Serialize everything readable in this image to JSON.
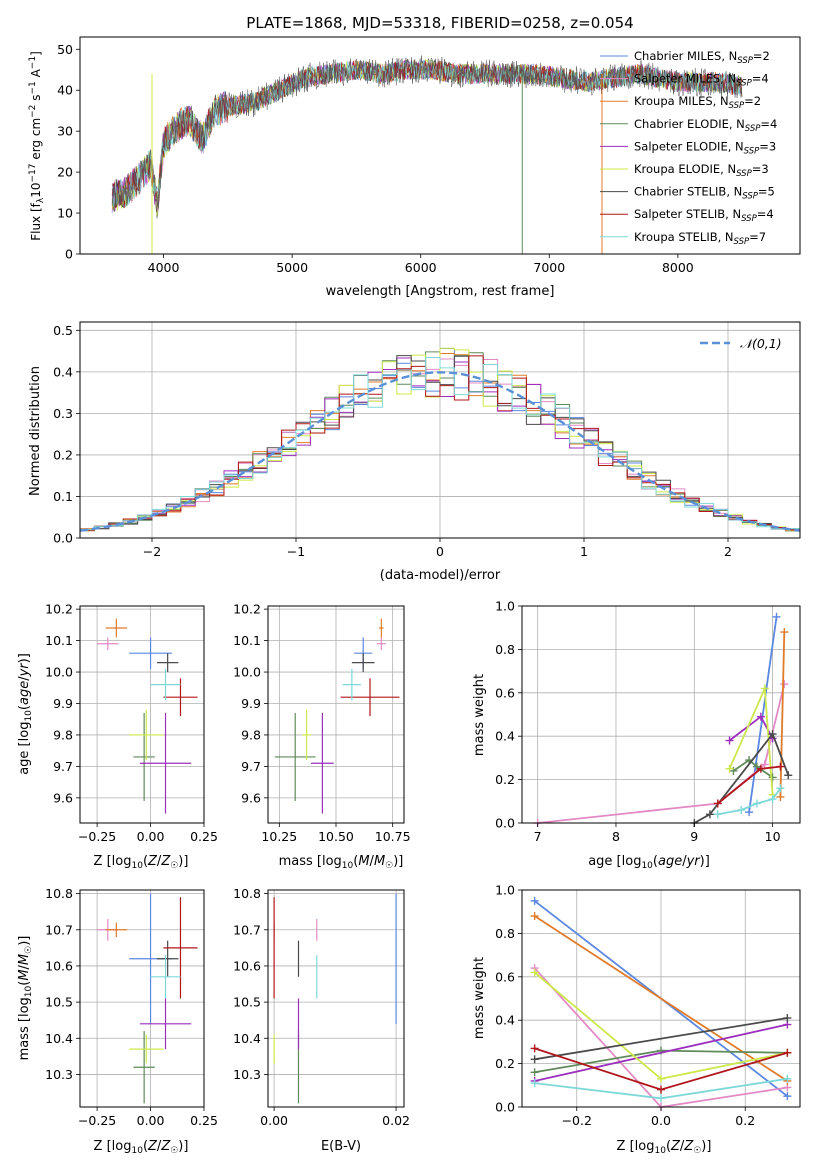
{
  "chart_data": [
    {
      "type": "line",
      "title": "PLATE=1868, MJD=53318, FIBERID=0258, z=0.054",
      "xlabel": "wavelength [Angstrom, rest frame]",
      "ylabel": "Flux [f_λ10^-17 erg cm^-2 s^-1 A^-1]",
      "xlim": [
        3350,
        8950
      ],
      "ylim": [
        0,
        53
      ],
      "xticks": [
        "4000",
        "5000",
        "6000",
        "7000",
        "8000"
      ],
      "yticks": [
        "0",
        "10",
        "20",
        "30",
        "40",
        "50"
      ],
      "legend": "top-right",
      "continuum": [
        [
          3600,
          14
        ],
        [
          3700,
          15
        ],
        [
          3800,
          18
        ],
        [
          3900,
          22
        ],
        [
          3950,
          12
        ],
        [
          4000,
          27
        ],
        [
          4100,
          31
        ],
        [
          4200,
          33
        ],
        [
          4300,
          28
        ],
        [
          4400,
          35
        ],
        [
          4500,
          36
        ],
        [
          4700,
          37
        ],
        [
          4900,
          40
        ],
        [
          5100,
          43
        ],
        [
          5300,
          44
        ],
        [
          5500,
          45
        ],
        [
          5700,
          44
        ],
        [
          5900,
          45
        ],
        [
          6100,
          45
        ],
        [
          6300,
          44
        ],
        [
          6500,
          44
        ],
        [
          6700,
          44
        ],
        [
          6900,
          44
        ],
        [
          7100,
          43
        ],
        [
          7300,
          42
        ],
        [
          7500,
          43
        ],
        [
          7700,
          44
        ],
        [
          8000,
          42
        ],
        [
          8300,
          42
        ],
        [
          8500,
          41
        ]
      ]
    },
    {
      "type": "line",
      "xlabel": "(data-model)/error",
      "ylabel": "Normed distribution",
      "xlim": [
        -2.5,
        2.5
      ],
      "ylim": [
        0,
        0.52
      ],
      "xticks": [
        "−2",
        "−1",
        "0",
        "1",
        "2"
      ],
      "yticks": [
        "0.0",
        "0.1",
        "0.2",
        "0.3",
        "0.4",
        "0.5"
      ],
      "grid": true,
      "legend": "top-right",
      "reference": {
        "name": "𝒩(0,1)",
        "mean": 0,
        "sigma": 1
      }
    },
    {
      "type": "scatter",
      "xlabel": "Z [log10(Z/Z☉)]",
      "ylabel": "age [log10(age/yr)]",
      "xlim": [
        -0.33,
        0.25
      ],
      "ylim": [
        9.52,
        10.21
      ],
      "xticks": [
        "−0.25",
        "0.00",
        "0.25"
      ],
      "yticks": [
        "9.6",
        "9.7",
        "9.8",
        "9.9",
        "10.0",
        "10.1",
        "10.2"
      ],
      "grid": true
    },
    {
      "type": "scatter",
      "xlabel": "mass [log10(M/M☉)]",
      "xlim": [
        10.2,
        10.8
      ],
      "ylim": [
        9.52,
        10.21
      ],
      "xticks": [
        "10.25",
        "10.50",
        "10.75"
      ],
      "yticks": [
        "9.6",
        "9.7",
        "9.8",
        "9.9",
        "10.0",
        "10.1",
        "10.2"
      ],
      "grid": true
    },
    {
      "type": "line",
      "xlabel": "age [log10(age/yr)]",
      "ylabel": "mass weight",
      "xlim": [
        6.8,
        10.35
      ],
      "ylim": [
        0,
        1
      ],
      "xticks": [
        "7",
        "8",
        "9",
        "10"
      ],
      "yticks": [
        "0.0",
        "0.2",
        "0.4",
        "0.6",
        "0.8",
        "1.0"
      ],
      "grid": true
    },
    {
      "type": "scatter",
      "xlabel": "Z [log10(Z/Z☉)]",
      "ylabel": "mass [log10(M/M☉)]",
      "xlim": [
        -0.33,
        0.25
      ],
      "ylim": [
        10.21,
        10.81
      ],
      "xticks": [
        "−0.25",
        "0.00",
        "0.25"
      ],
      "yticks": [
        "10.3",
        "10.4",
        "10.5",
        "10.6",
        "10.7",
        "10.8"
      ],
      "grid": true
    },
    {
      "type": "scatter",
      "xlabel": "E(B-V)",
      "xlim": [
        -0.001,
        0.0213
      ],
      "ylim": [
        10.21,
        10.81
      ],
      "xticks": [
        "0.00",
        "0.02"
      ],
      "yticks": [
        "10.3",
        "10.4",
        "10.5",
        "10.6",
        "10.7",
        "10.8"
      ],
      "grid": true
    },
    {
      "type": "line",
      "xlabel": "Z [log10(Z/Z☉)]",
      "ylabel": "mass weight",
      "xlim": [
        -0.33,
        0.33
      ],
      "ylim": [
        0,
        1
      ],
      "xticks": [
        "−0.2",
        "0.0",
        "0.2"
      ],
      "yticks": [
        "0.0",
        "0.2",
        "0.4",
        "0.6",
        "0.8",
        "1.0"
      ],
      "grid": true
    }
  ],
  "series": [
    {
      "label": "Chabrier MILES, N",
      "n": "2",
      "color": "#5b87e0",
      "z": 0.0,
      "zerr": 0.1,
      "age": 10.06,
      "ageerr": 0.05,
      "mass": 10.62,
      "masserr": 0.04,
      "massz_err": 0.18,
      "ebv": 0.02,
      "ages_w": [
        [
          10.05,
          0.95
        ],
        [
          9.7,
          0.05
        ]
      ],
      "z_w": [
        [
          -0.3,
          0.95
        ],
        [
          0.3,
          0.05
        ]
      ]
    },
    {
      "label": "Salpeter MILES, N",
      "n": "4",
      "color": "#e38ac6",
      "z": -0.2,
      "zerr": 0.05,
      "age": 10.09,
      "ageerr": 0.02,
      "mass": 10.7,
      "masserr": 0.02,
      "massz_err": 0.03,
      "ebv": 0.007,
      "ages_w": [
        [
          7.0,
          0.0
        ],
        [
          9.3,
          0.09
        ],
        [
          9.9,
          0.27
        ],
        [
          10.15,
          0.64
        ]
      ],
      "z_w": [
        [
          -0.3,
          0.64
        ],
        [
          0.0,
          0.0
        ],
        [
          0.3,
          0.09
        ]
      ]
    },
    {
      "label": "Kroupa MILES, N",
      "n": "2",
      "color": "#e07b2a",
      "z": -0.16,
      "zerr": 0.05,
      "age": 10.14,
      "ageerr": 0.03,
      "mass": 10.7,
      "masserr": 0.01,
      "massz_err": 0.02,
      "ebv": 0.0,
      "ages_w": [
        [
          10.15,
          0.88
        ],
        [
          10.1,
          0.12
        ]
      ],
      "z_w": [
        [
          -0.3,
          0.88
        ],
        [
          0.3,
          0.12
        ]
      ]
    },
    {
      "label": "Chabrier ELODIE, N",
      "n": "4",
      "color": "#5f8a5a",
      "z": -0.03,
      "zerr": 0.05,
      "age": 9.73,
      "ageerr": 0.14,
      "mass": 10.32,
      "masserr": 0.09,
      "massz_err": 0.1,
      "ebv": 0.004,
      "ages_w": [
        [
          9.5,
          0.24
        ],
        [
          9.7,
          0.29
        ],
        [
          9.8,
          0.26
        ],
        [
          10.0,
          0.21
        ]
      ],
      "z_w": [
        [
          -0.3,
          0.16
        ],
        [
          0.0,
          0.26
        ],
        [
          0.3,
          0.25
        ]
      ]
    },
    {
      "label": "Salpeter ELODIE, N",
      "n": "3",
      "color": "#9d2fbd",
      "z": 0.07,
      "zerr": 0.12,
      "age": 9.71,
      "ageerr": 0.16,
      "mass": 10.44,
      "masserr": 0.05,
      "massz_err": 0.07,
      "ebv": 0.004,
      "ages_w": [
        [
          9.45,
          0.38
        ],
        [
          9.85,
          0.49
        ],
        [
          10.0,
          0.39
        ]
      ],
      "z_w": [
        [
          -0.3,
          0.12
        ],
        [
          0.3,
          0.38
        ]
      ]
    },
    {
      "label": "Kroupa ELODIE, N",
      "n": "3",
      "color": "#cce84a",
      "z": -0.02,
      "zerr": 0.08,
      "age": 9.8,
      "ageerr": 0.08,
      "mass": 10.37,
      "masserr": 0.02,
      "massz_err": 0.04,
      "ebv": 0.0,
      "ages_w": [
        [
          9.45,
          0.25
        ],
        [
          9.9,
          0.62
        ],
        [
          10.0,
          0.13
        ]
      ],
      "z_w": [
        [
          -0.3,
          0.62
        ],
        [
          0.0,
          0.13
        ],
        [
          0.3,
          0.25
        ]
      ]
    },
    {
      "label": "Chabrier STELIB, N",
      "n": "5",
      "color": "#4a4a4a",
      "z": 0.08,
      "zerr": 0.05,
      "age": 10.03,
      "ageerr": 0.03,
      "mass": 10.62,
      "masserr": 0.05,
      "massz_err": 0.05,
      "ebv": 0.004,
      "ages_w": [
        [
          9.0,
          0.0
        ],
        [
          9.2,
          0.04
        ],
        [
          10.0,
          0.41
        ],
        [
          10.2,
          0.22
        ]
      ],
      "z_w": [
        [
          -0.3,
          0.22
        ],
        [
          0.3,
          0.41
        ]
      ]
    },
    {
      "label": "Salpeter STELIB, N",
      "n": "4",
      "color": "#b0161b",
      "z": 0.14,
      "zerr": 0.08,
      "age": 9.92,
      "ageerr": 0.06,
      "mass": 10.65,
      "masserr": 0.13,
      "massz_err": 0.14,
      "ebv": 0.0,
      "ages_w": [
        [
          9.3,
          0.09
        ],
        [
          9.85,
          0.25
        ],
        [
          10.1,
          0.26
        ]
      ],
      "z_w": [
        [
          -0.3,
          0.27
        ],
        [
          0.0,
          0.08
        ],
        [
          0.3,
          0.25
        ]
      ]
    },
    {
      "label": "Kroupa STELIB, N",
      "n": "7",
      "color": "#7fd8d8",
      "z": 0.07,
      "zerr": 0.07,
      "age": 9.96,
      "ageerr": 0.05,
      "mass": 10.57,
      "masserr": 0.04,
      "massz_err": 0.06,
      "ebv": 0.007,
      "ages_w": [
        [
          9.3,
          0.04
        ],
        [
          9.6,
          0.06
        ],
        [
          9.8,
          0.09
        ],
        [
          10.0,
          0.11
        ],
        [
          10.1,
          0.16
        ]
      ],
      "z_w": [
        [
          -0.3,
          0.11
        ],
        [
          0.0,
          0.04
        ],
        [
          0.3,
          0.13
        ]
      ]
    }
  ]
}
